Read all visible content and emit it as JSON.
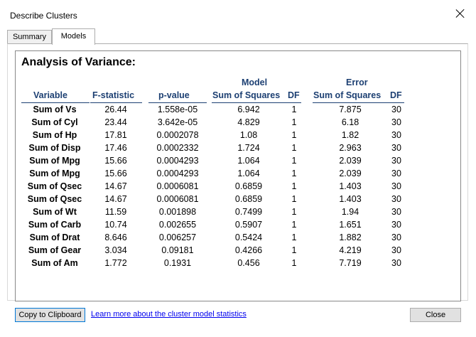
{
  "window": {
    "title": "Describe Clusters"
  },
  "tabs": [
    {
      "label": "Summary",
      "active": false
    },
    {
      "label": "Models",
      "active": true
    }
  ],
  "anova": {
    "heading": "Analysis of Variance:",
    "group_headers": {
      "model": "Model",
      "error": "Error"
    },
    "columns": [
      "Variable",
      "F-statistic",
      "p-value",
      "Sum of Squares",
      "DF",
      "Sum of Squares",
      "DF"
    ],
    "rows": [
      [
        "Sum of Vs",
        "26.44",
        "1.558e-05",
        "6.942",
        "1",
        "7.875",
        "30"
      ],
      [
        "Sum of Cyl",
        "23.44",
        "3.642e-05",
        "4.829",
        "1",
        "6.18",
        "30"
      ],
      [
        "Sum of Hp",
        "17.81",
        "0.0002078",
        "1.08",
        "1",
        "1.82",
        "30"
      ],
      [
        "Sum of Disp",
        "17.46",
        "0.0002332",
        "1.724",
        "1",
        "2.963",
        "30"
      ],
      [
        "Sum of Mpg",
        "15.66",
        "0.0004293",
        "1.064",
        "1",
        "2.039",
        "30"
      ],
      [
        "Sum of Mpg",
        "15.66",
        "0.0004293",
        "1.064",
        "1",
        "2.039",
        "30"
      ],
      [
        "Sum of Qsec",
        "14.67",
        "0.0006081",
        "0.6859",
        "1",
        "1.403",
        "30"
      ],
      [
        "Sum of Qsec",
        "14.67",
        "0.0006081",
        "0.6859",
        "1",
        "1.403",
        "30"
      ],
      [
        "Sum of Wt",
        "11.59",
        "0.001898",
        "0.7499",
        "1",
        "1.94",
        "30"
      ],
      [
        "Sum of Carb",
        "10.74",
        "0.002655",
        "0.5907",
        "1",
        "1.651",
        "30"
      ],
      [
        "Sum of Drat",
        "8.646",
        "0.006257",
        "0.5424",
        "1",
        "1.882",
        "30"
      ],
      [
        "Sum of Gear",
        "3.034",
        "0.09181",
        "0.4266",
        "1",
        "4.219",
        "30"
      ],
      [
        "Sum of Am",
        "1.772",
        "0.1931",
        "0.456",
        "1",
        "7.719",
        "30"
      ]
    ]
  },
  "footer": {
    "copy_label": "Copy to Clipboard",
    "link_label": "Learn more about the cluster model statistics",
    "close_label": "Close"
  },
  "colors": {
    "header_text": "#1c3f72",
    "link": "#0000ee",
    "focus_border": "#0078d7"
  }
}
